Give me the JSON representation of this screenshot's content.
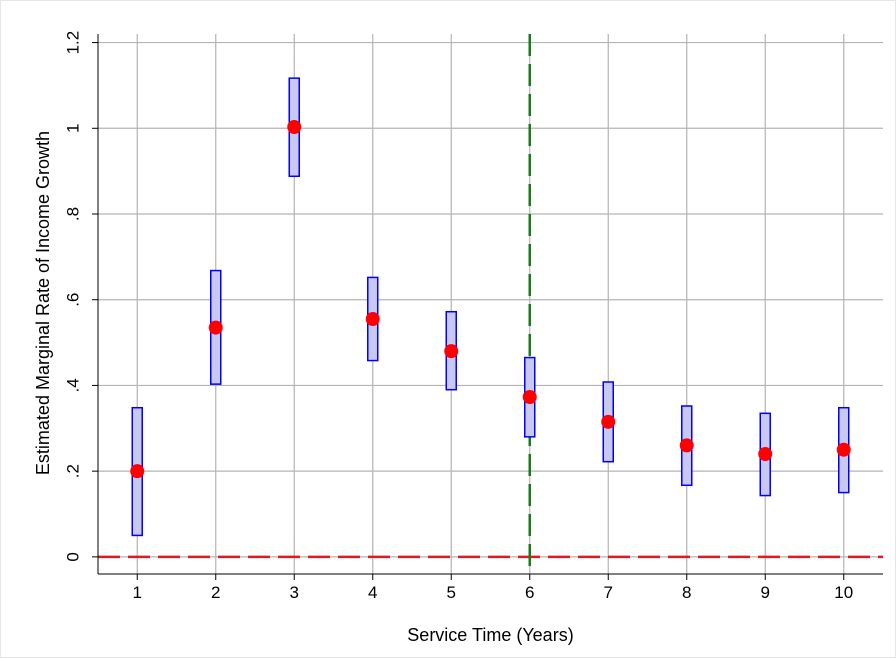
{
  "chart_data": {
    "type": "scatter",
    "title": "",
    "xlabel": "Service Time (Years)",
    "ylabel": "Estimated Marginal Rate of Income Growth",
    "x": [
      1,
      2,
      3,
      4,
      5,
      6,
      7,
      8,
      9,
      10
    ],
    "xlim": [
      0.5,
      10.5
    ],
    "ylim": [
      -0.04,
      1.22
    ],
    "xticks": [
      1,
      2,
      3,
      4,
      5,
      6,
      7,
      8,
      9,
      10
    ],
    "xtick_labels": [
      "1",
      "2",
      "3",
      "4",
      "5",
      "6",
      "7",
      "8",
      "9",
      "10"
    ],
    "yticks": [
      0,
      0.2,
      0.4,
      0.6,
      0.8,
      1,
      1.2
    ],
    "ytick_labels": [
      "0",
      ".2",
      ".4",
      ".6",
      ".8",
      "1",
      "1.2"
    ],
    "series": [
      {
        "type": "point-estimate",
        "values": [
          0.2,
          0.535,
          1.003,
          0.555,
          0.48,
          0.373,
          0.315,
          0.26,
          0.24,
          0.25
        ],
        "color": "#ff0000"
      },
      {
        "type": "confidence-interval",
        "lower": [
          0.05,
          0.403,
          0.888,
          0.458,
          0.39,
          0.28,
          0.222,
          0.167,
          0.143,
          0.15
        ],
        "upper": [
          0.348,
          0.668,
          1.117,
          0.652,
          0.572,
          0.465,
          0.408,
          0.352,
          0.335,
          0.348
        ],
        "fill": "#c8c8f0",
        "stroke": "#0000ff"
      }
    ],
    "reference_lines": [
      {
        "orientation": "horizontal",
        "value": 0,
        "color": "#e31a1c",
        "style": "dashed"
      },
      {
        "orientation": "vertical",
        "value": 6,
        "color": "#1b7a1b",
        "style": "dashed"
      }
    ],
    "grid": true,
    "legend": "none"
  }
}
